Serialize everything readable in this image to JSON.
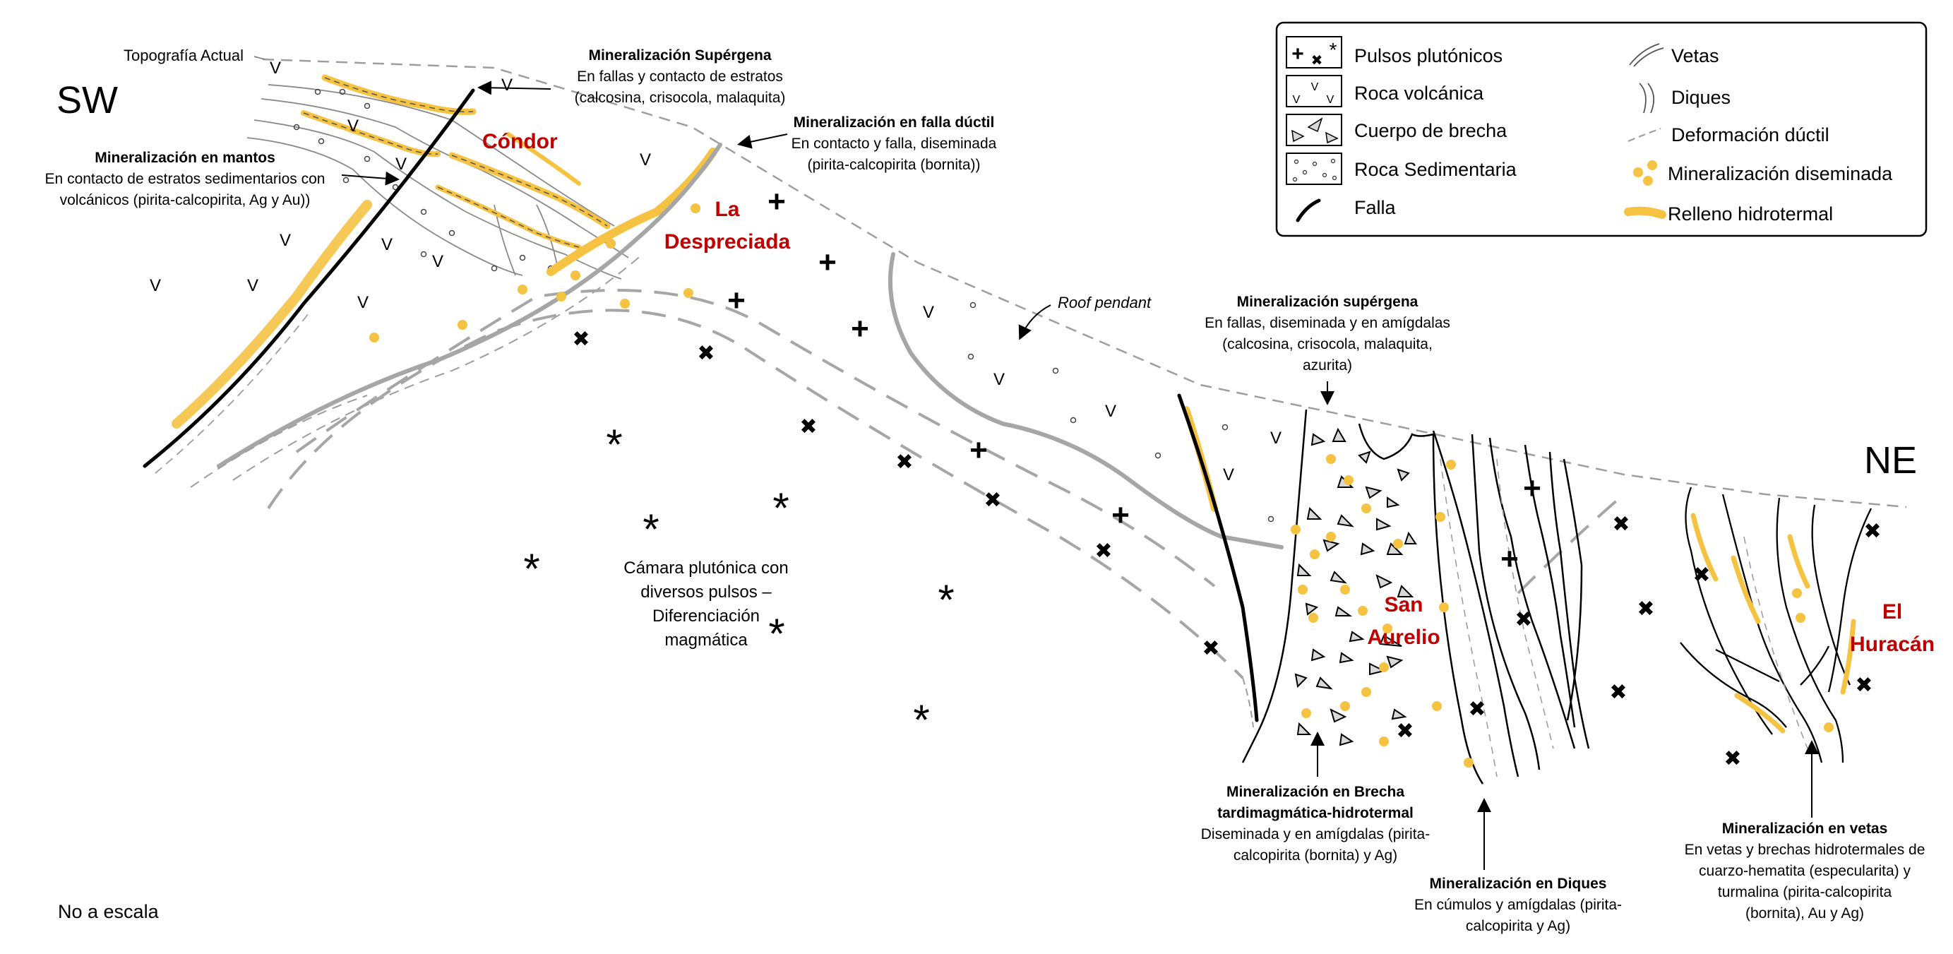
{
  "directions": {
    "left": "SW",
    "right": "NE"
  },
  "scale_note": "No a escala",
  "topography_label": "Topografía Actual",
  "roof_pendant_label": "Roof pendant",
  "deposits": {
    "condor": "Cóndor",
    "la_despreciada": [
      "La",
      "Despreciada"
    ],
    "san_aurelio": [
      "San",
      "Aurelio"
    ],
    "el_huracan": [
      "El",
      "Huracán"
    ]
  },
  "plutonic_chamber": [
    "Cámara plutónica con",
    "diversos pulsos –",
    "Diferenciación",
    "magmática"
  ],
  "annotations": {
    "supergene_top": {
      "title": "Mineralización Supérgena",
      "lines": [
        "En fallas y contacto de estratos",
        "(calcosina, crisocola, malaquita)"
      ]
    },
    "ductile_fault": {
      "title": "Mineralización en falla dúctil",
      "lines": [
        "En contacto y falla, diseminada",
        "(pirita-calcopirita (bornita))"
      ]
    },
    "mantos": {
      "title": "Mineralización en mantos",
      "lines": [
        "En contacto de estratos sedimentarios con",
        "volcánicos (pirita-calcopirita, Ag y Au))"
      ]
    },
    "supergene_mid": {
      "title": "Mineralización supérgena",
      "lines": [
        "En fallas, diseminada y en amígdalas",
        "(calcosina, crisocola, malaquita,",
        "azurita)"
      ]
    },
    "breccia": {
      "title_lines": [
        "Mineralización en Brecha",
        "tardimagmática-hidrotermal"
      ],
      "lines": [
        "Diseminada y en amígdalas (pirita-",
        "calcopirita (bornita) y Ag)"
      ]
    },
    "dikes": {
      "title": "Mineralización en Diques",
      "lines": [
        "En cúmulos y amígdalas (pirita-",
        "calcopirita y Ag)"
      ]
    },
    "veins": {
      "title": "Mineralización en vetas",
      "lines": [
        "En vetas y brechas hidrotermales de",
        "cuarzo-hematita (especularita) y",
        "turmalina (pirita-calcopirita",
        "(bornita), Au y Ag)"
      ]
    }
  },
  "legend": {
    "left": [
      {
        "icon": "plutonic-pulses-icon",
        "label": "Pulsos plutónicos"
      },
      {
        "icon": "volcanic-rock-icon",
        "label": "Roca volcánica"
      },
      {
        "icon": "breccia-body-icon",
        "label": "Cuerpo de brecha"
      },
      {
        "icon": "sedimentary-rock-icon",
        "label": "Roca Sedimentaria"
      },
      {
        "icon": "fault-icon",
        "label": "Falla"
      }
    ],
    "right": [
      {
        "icon": "veins-icon",
        "label": "Vetas"
      },
      {
        "icon": "dikes-icon",
        "label": "Diques"
      },
      {
        "icon": "ductile-deformation-icon",
        "label": "Deformación dúctil"
      },
      {
        "icon": "disseminated-mineralization-icon",
        "label": "Mineralización diseminada"
      },
      {
        "icon": "hydrothermal-fill-icon",
        "label": "Relleno hidrotermal"
      }
    ]
  },
  "symbols": {
    "volcanic": "V",
    "plus": "+",
    "cross": "✖",
    "star": "*"
  },
  "colors": {
    "gold": "#f5c242",
    "deposit_red": "#c00000",
    "grey_line": "#a6a6a6",
    "dashed": "#9e9e9e"
  }
}
